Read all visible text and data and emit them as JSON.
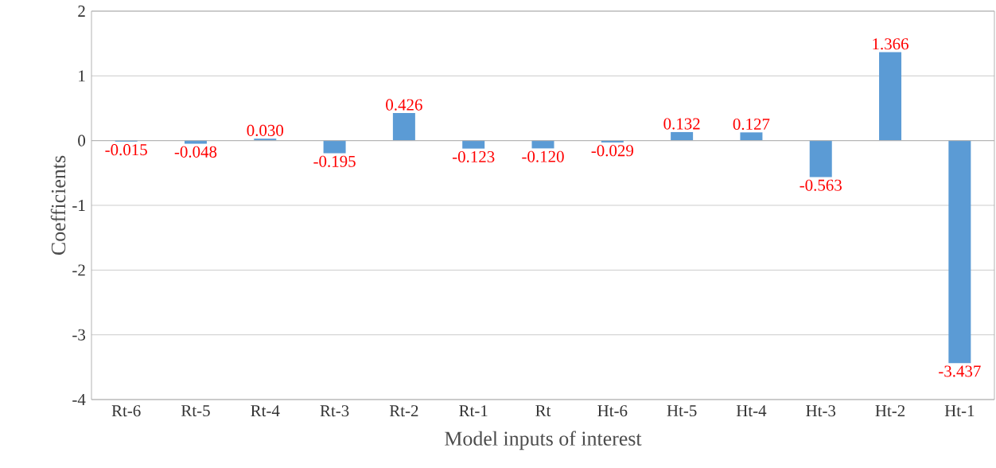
{
  "chart_data": {
    "type": "bar",
    "xlabel": "Model inputs of interest",
    "ylabel": "Coefficients",
    "categories": [
      "Rt-6",
      "Rt-5",
      "Rt-4",
      "Rt-3",
      "Rt-2",
      "Rt-1",
      "Rt",
      "Ht-6",
      "Ht-5",
      "Ht-4",
      "Ht-3",
      "Ht-2",
      "Ht-1"
    ],
    "values": [
      -0.015,
      -0.048,
      0.03,
      -0.195,
      0.426,
      -0.123,
      -0.12,
      -0.029,
      0.132,
      0.127,
      -0.563,
      1.366,
      -3.437
    ],
    "value_labels": [
      "-0.015",
      "-0.048",
      "0.030",
      "-0.195",
      "0.426",
      "-0.123",
      "-0.120",
      "-0.029",
      "0.132",
      "0.127",
      "-0.563",
      "1.366",
      "-3.437"
    ],
    "color": "#5b9bd5",
    "ylim": [
      -4,
      2
    ],
    "yticks": [
      -4,
      -3,
      -2,
      -1,
      0,
      1,
      2
    ],
    "grid": "y"
  }
}
